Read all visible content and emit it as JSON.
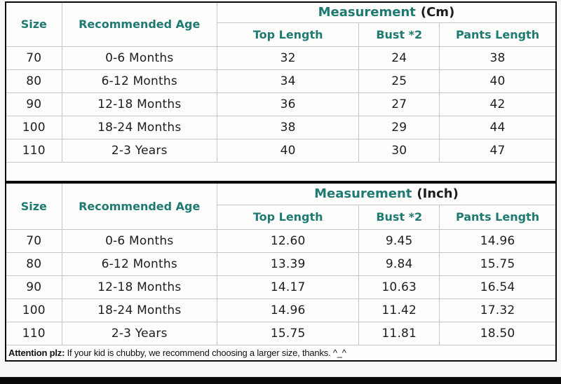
{
  "chart_data": [
    {
      "type": "table",
      "title": "Measurement (Cm)",
      "measurement_label": "Measurement",
      "unit_label": "(Cm)",
      "columns": {
        "size": "Size",
        "age": "Recommended Age",
        "sub": [
          "Top Length",
          "Bust *2",
          "Pants Length"
        ]
      },
      "rows": [
        [
          "70",
          "0-6 Months",
          "32",
          "24",
          "38"
        ],
        [
          "80",
          "6-12 Months",
          "34",
          "25",
          "40"
        ],
        [
          "90",
          "12-18 Months",
          "36",
          "27",
          "42"
        ],
        [
          "100",
          "18-24 Months",
          "38",
          "29",
          "44"
        ],
        [
          "110",
          "2-3 Years",
          "40",
          "30",
          "47"
        ]
      ]
    },
    {
      "type": "table",
      "title": "Measurement (Inch)",
      "measurement_label": "Measurement",
      "unit_label": "(Inch)",
      "columns": {
        "size": "Size",
        "age": "Recommended Age",
        "sub": [
          "Top Length",
          "Bust *2",
          "Pants Length"
        ]
      },
      "rows": [
        [
          "70",
          "0-6 Months",
          "12.60",
          "9.45",
          "14.96"
        ],
        [
          "80",
          "6-12 Months",
          "13.39",
          "9.84",
          "15.75"
        ],
        [
          "90",
          "12-18 Months",
          "14.17",
          "10.63",
          "16.54"
        ],
        [
          "100",
          "18-24 Months",
          "14.96",
          "11.42",
          "17.32"
        ],
        [
          "110",
          "2-3 Years",
          "15.75",
          "11.81",
          "18.50"
        ]
      ]
    }
  ],
  "footer_note": {
    "bold": "Attention plz:",
    "text": " If your kid is chubby, we recommend choosing a larger size, thanks. ^_^"
  },
  "colors": {
    "accent_teal": "#1f7a72",
    "body_text": "#1d1d1d",
    "gridline": "#c6c6c6",
    "outer_border": "#0a0a0a"
  }
}
